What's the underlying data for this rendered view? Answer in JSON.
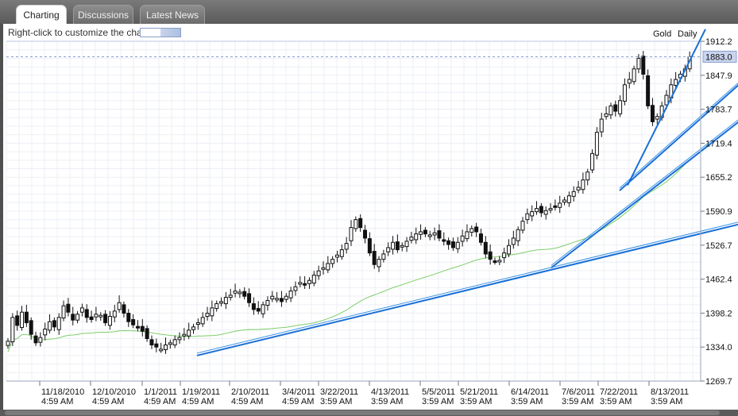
{
  "tabs": [
    {
      "label": "Charting",
      "active": true
    },
    {
      "label": "Discussions",
      "active": false
    },
    {
      "label": "Latest News",
      "active": false
    }
  ],
  "toolbar": {
    "hint": "Right-click to customize the chart"
  },
  "chart_header": {
    "symbol": "Gold",
    "period": "Daily"
  },
  "chart_data": {
    "type": "candlestick",
    "y_ticks": [
      1912.2,
      1847.9,
      1783.7,
      1719.4,
      1655.2,
      1590.9,
      1526.7,
      1462.4,
      1398.2,
      1334.0,
      1269.7
    ],
    "y_tick_labels": [
      "1912.2",
      "1847.9",
      "1783.7",
      "1719.4",
      "1655.2",
      "1590.9",
      "1526.7",
      "1462.4",
      "1398.2",
      "1334.0",
      "1269.7"
    ],
    "ylim": [
      1269.7,
      1912.2
    ],
    "current_price": 1883.0,
    "current_price_label": "1883.0",
    "x_tick_labels": [
      {
        "date": "11/18/2010",
        "time": "4:59 AM"
      },
      {
        "date": "12/10/2010",
        "time": "4:59 AM"
      },
      {
        "date": "1/1/2011",
        "time": "4:59 AM"
      },
      {
        "date": "1/19/2011",
        "time": "4:59 AM"
      },
      {
        "date": "2/10/2011",
        "time": "4:59 AM"
      },
      {
        "date": "3/4/2011",
        "time": "4:59 AM"
      },
      {
        "date": "3/22/2011",
        "time": "3:59 AM"
      },
      {
        "date": "4/13/2011",
        "time": "3:59 AM"
      },
      {
        "date": "5/5/2011",
        "time": "3:59 AM"
      },
      {
        "date": "5/21/2011",
        "time": "3:59 AM"
      },
      {
        "date": "6/14/2011",
        "time": "3:59 AM"
      },
      {
        "date": "7/6/2011",
        "time": "3:59 AM"
      },
      {
        "date": "7/22/2011",
        "time": "3:59 AM"
      },
      {
        "date": "8/13/2011",
        "time": "3:59 AM"
      }
    ],
    "close_series": [
      1345,
      1390,
      1375,
      1400,
      1380,
      1358,
      1342,
      1352,
      1368,
      1382,
      1372,
      1390,
      1412,
      1400,
      1385,
      1396,
      1408,
      1390,
      1386,
      1396,
      1394,
      1380,
      1392,
      1402,
      1418,
      1398,
      1382,
      1376,
      1372,
      1364,
      1350,
      1338,
      1334,
      1330,
      1338,
      1342,
      1348,
      1352,
      1358,
      1366,
      1372,
      1380,
      1390,
      1398,
      1408,
      1416,
      1420,
      1428,
      1432,
      1440,
      1438,
      1430,
      1418,
      1405,
      1402,
      1414,
      1422,
      1430,
      1426,
      1420,
      1430,
      1440,
      1448,
      1456,
      1452,
      1460,
      1470,
      1478,
      1484,
      1492,
      1500,
      1508,
      1518,
      1530,
      1560,
      1575,
      1560,
      1540,
      1512,
      1490,
      1500,
      1510,
      1522,
      1532,
      1518,
      1526,
      1534,
      1542,
      1548,
      1552,
      1548,
      1546,
      1550,
      1540,
      1534,
      1528,
      1522,
      1532,
      1544,
      1552,
      1558,
      1552,
      1532,
      1510,
      1500,
      1496,
      1498,
      1512,
      1526,
      1540,
      1556,
      1572,
      1586,
      1590,
      1596,
      1588,
      1592,
      1596,
      1600,
      1606,
      1612,
      1620,
      1628,
      1636,
      1650,
      1665,
      1700,
      1740,
      1765,
      1775,
      1790,
      1780,
      1800,
      1830,
      1840,
      1860,
      1880,
      1850,
      1790,
      1760,
      1770,
      1790,
      1810,
      1830,
      1840,
      1850,
      1860,
      1883
    ],
    "moving_average": "green line",
    "trendlines": "blue lines"
  }
}
